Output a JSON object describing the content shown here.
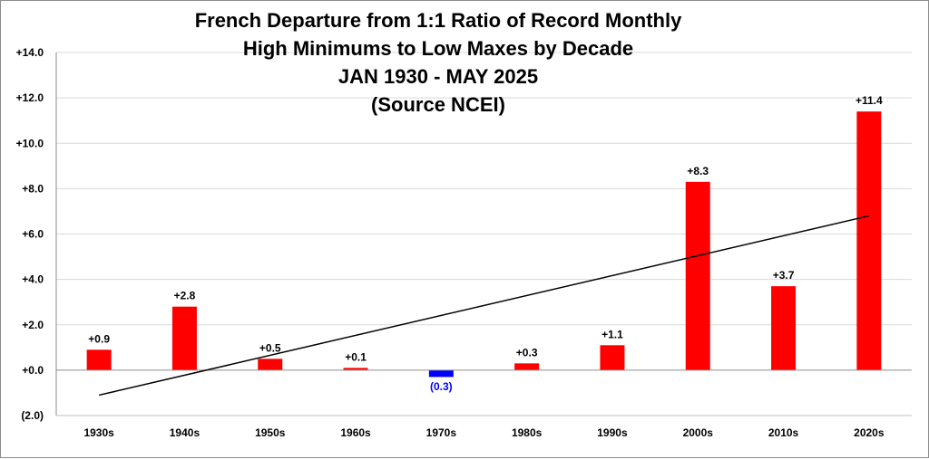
{
  "chart_data": {
    "type": "bar",
    "title_lines": [
      "French Departure from 1:1 Ratio of Record Monthly",
      "High Minimums to Low Maxes by Decade",
      "JAN 1930 - MAY 2025",
      "(Source NCEI)"
    ],
    "categories": [
      "1930s",
      "1940s",
      "1950s",
      "1960s",
      "1970s",
      "1980s",
      "1990s",
      "2000s",
      "2010s",
      "2020s"
    ],
    "values": [
      0.9,
      2.8,
      0.5,
      0.1,
      -0.3,
      0.3,
      1.1,
      8.3,
      3.7,
      11.4
    ],
    "data_labels": [
      "+0.9",
      "+2.8",
      "+0.5",
      "+0.1",
      "(0.3)",
      "+0.3",
      "+1.1",
      "+8.3",
      "+3.7",
      "+11.4"
    ],
    "ylim": [
      -2.0,
      14.0
    ],
    "y_ticks": [
      -2.0,
      0.0,
      2.0,
      4.0,
      6.0,
      8.0,
      10.0,
      12.0,
      14.0
    ],
    "y_tick_labels": [
      "(2.0)",
      "+0.0",
      "+2.0",
      "+4.0",
      "+6.0",
      "+8.0",
      "+10.0",
      "+12.0",
      "+14.0"
    ],
    "grid": true,
    "trendline": {
      "type": "linear",
      "start_value": -1.1,
      "end_value": 6.8
    },
    "colors": {
      "positive": "#ff0000",
      "negative": "#0000ff",
      "negative_label": "#0000ff",
      "positive_label": "#000000",
      "grid": "#d9d9d9",
      "trend": "#000000"
    }
  }
}
